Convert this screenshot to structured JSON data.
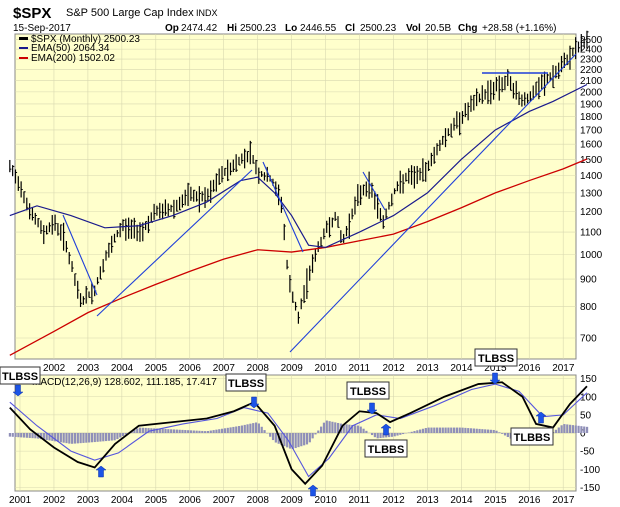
{
  "header": {
    "symbol": "$SPX",
    "name": "S&P 500 Large Cap Index",
    "exchange": "INDX",
    "date": "15-Sep-2017",
    "open_label": "Op",
    "open": "2474.42",
    "high_label": "Hi",
    "high": "2500.23",
    "low_label": "Lo",
    "low": "2446.55",
    "close_label": "Cl",
    "close": "2500.23",
    "vol_label": "Vol",
    "vol": "20.5B",
    "chg_label": "Chg",
    "chg": "+28.58 (+1.16%)"
  },
  "legend": {
    "price": "$SPX (Monthly) 2500.23",
    "ema50": "EMA(50) 2064.34",
    "ema200": "EMA(200) 1502.02",
    "macd": "MACD(12,26,9) 128.602, 111.185, 17.417"
  },
  "annotations": {
    "tlbss": "TLBSS",
    "tlbbs": "TLBBS"
  },
  "colors": {
    "panel_bg": "#ffffcc",
    "grid": "#d8d8b0",
    "price_bars": "#000000",
    "ema50": "#1a1a8c",
    "ema200": "#cc0000",
    "trendline": "#1f3fd9",
    "arrow": "#1c54e6",
    "histogram": "#8f8fb8",
    "signal": "#5555dd"
  },
  "chart_data": [
    {
      "type": "line",
      "title": "$SPX S&P 500 Large Cap Index INDX",
      "scale": "log",
      "ylim": [
        640,
        2560
      ],
      "y_ticks": [
        700,
        800,
        900,
        1000,
        1100,
        1200,
        1300,
        1400,
        1500,
        1600,
        1700,
        1800,
        1900,
        2000,
        2100,
        2200,
        2300,
        2400,
        2500
      ],
      "x_ticks": [
        "2002",
        "2003",
        "2004",
        "2005",
        "2006",
        "2007",
        "2008",
        "2009",
        "2010",
        "2011",
        "2012",
        "2013",
        "2014",
        "2015",
        "2016",
        "2017"
      ],
      "series": [
        {
          "name": "$SPX (Monthly)",
          "x": [
            2000.7,
            2001.0,
            2001.3,
            2001.7,
            2002.0,
            2002.3,
            2002.6,
            2002.8,
            2003.2,
            2003.5,
            2004.0,
            2004.6,
            2005.0,
            2005.5,
            2006.0,
            2006.5,
            2006.9,
            2007.5,
            2007.8,
            2008.0,
            2008.4,
            2008.7,
            2008.9,
            2009.2,
            2009.5,
            2010.0,
            2010.3,
            2010.5,
            2011.0,
            2011.3,
            2011.7,
            2012.0,
            2012.3,
            2012.9,
            2013.5,
            2014.0,
            2014.5,
            2015.0,
            2015.4,
            2015.7,
            2016.0,
            2016.4,
            2016.9,
            2017.2,
            2017.7
          ],
          "values": [
            1450,
            1350,
            1200,
            1100,
            1150,
            1080,
            900,
            820,
            860,
            980,
            1130,
            1110,
            1200,
            1220,
            1290,
            1270,
            1400,
            1500,
            1550,
            1420,
            1380,
            1250,
            900,
            760,
            920,
            1110,
            1180,
            1050,
            1300,
            1350,
            1150,
            1300,
            1380,
            1420,
            1650,
            1800,
            1950,
            2050,
            2100,
            1950,
            1950,
            2080,
            2200,
            2350,
            2500
          ]
        },
        {
          "name": "EMA(50)",
          "x": [
            2000.7,
            2001.5,
            2002.5,
            2003.5,
            2004.5,
            2005.5,
            2006.5,
            2007.5,
            2008.0,
            2008.5,
            2009.0,
            2009.5,
            2010.0,
            2011.0,
            2012.0,
            2013.0,
            2014.0,
            2015.0,
            2016.0,
            2016.7,
            2017.7
          ],
          "values": [
            1180,
            1230,
            1180,
            1120,
            1130,
            1180,
            1250,
            1370,
            1390,
            1300,
            1180,
            1040,
            1030,
            1100,
            1180,
            1300,
            1500,
            1700,
            1840,
            1920,
            2064
          ]
        },
        {
          "name": "EMA(200)",
          "x": [
            2000.7,
            2002.0,
            2003.0,
            2004.0,
            2005.0,
            2006.0,
            2007.0,
            2008.0,
            2009.0,
            2010.0,
            2011.0,
            2012.0,
            2013.0,
            2014.0,
            2015.0,
            2016.0,
            2017.0,
            2017.7
          ],
          "values": [
            650,
            720,
            780,
            830,
            880,
            930,
            980,
            1020,
            1010,
            1030,
            1060,
            1090,
            1150,
            1220,
            1300,
            1370,
            1440,
            1502
          ]
        }
      ]
    },
    {
      "type": "line",
      "title": "MACD(12,26,9) 128.602, 111.185, 17.417",
      "ylim": [
        -160,
        160
      ],
      "y_ticks": [
        150,
        100,
        50,
        0,
        -50,
        -100,
        -150
      ],
      "x_ticks": [
        "2001",
        "2002",
        "2003",
        "2004",
        "2005",
        "2006",
        "2007",
        "2008",
        "2009",
        "2010",
        "2011",
        "2012",
        "2013",
        "2014",
        "2015",
        "2016",
        "2017"
      ],
      "series": [
        {
          "name": "MACD",
          "x": [
            2000.7,
            2001.3,
            2002.0,
            2002.7,
            2003.2,
            2003.8,
            2004.5,
            2005.5,
            2006.5,
            2007.3,
            2007.9,
            2008.5,
            2009.0,
            2009.4,
            2009.9,
            2010.5,
            2011.0,
            2011.5,
            2011.9,
            2012.5,
            2013.5,
            2014.5,
            2015.2,
            2015.8,
            2016.2,
            2016.7,
            2017.2,
            2017.7
          ],
          "values": [
            70,
            10,
            -40,
            -80,
            -95,
            -30,
            20,
            30,
            40,
            60,
            85,
            20,
            -100,
            -140,
            -90,
            20,
            60,
            55,
            30,
            55,
            100,
            135,
            140,
            100,
            25,
            15,
            80,
            129
          ]
        },
        {
          "name": "Signal",
          "x": [
            2000.7,
            2001.5,
            2002.5,
            2003.2,
            2003.9,
            2004.8,
            2005.8,
            2006.8,
            2007.6,
            2008.3,
            2008.9,
            2009.5,
            2010.1,
            2010.8,
            2011.5,
            2012.2,
            2013.2,
            2014.3,
            2015.0,
            2015.7,
            2016.4,
            2017.0,
            2017.7
          ],
          "values": [
            85,
            20,
            -50,
            -75,
            -55,
            5,
            25,
            40,
            70,
            55,
            -20,
            -120,
            -70,
            20,
            50,
            40,
            75,
            120,
            135,
            115,
            45,
            50,
            111
          ]
        },
        {
          "name": "Histogram",
          "x": [
            2000.7,
            2001.5,
            2002.5,
            2003.2,
            2003.8,
            2004.5,
            2005.5,
            2006.5,
            2007.5,
            2008.0,
            2008.5,
            2009.0,
            2009.5,
            2010.0,
            2010.5,
            2011.0,
            2011.5,
            2012.0,
            2013.0,
            2014.0,
            2015.0,
            2015.5,
            2016.0,
            2016.5,
            2017.0,
            2017.7
          ],
          "values": [
            -10,
            -15,
            -30,
            -25,
            -20,
            15,
            10,
            5,
            20,
            30,
            -25,
            -45,
            -30,
            35,
            25,
            20,
            -15,
            -10,
            15,
            15,
            8,
            -18,
            -22,
            -12,
            25,
            17
          ]
        }
      ]
    }
  ]
}
